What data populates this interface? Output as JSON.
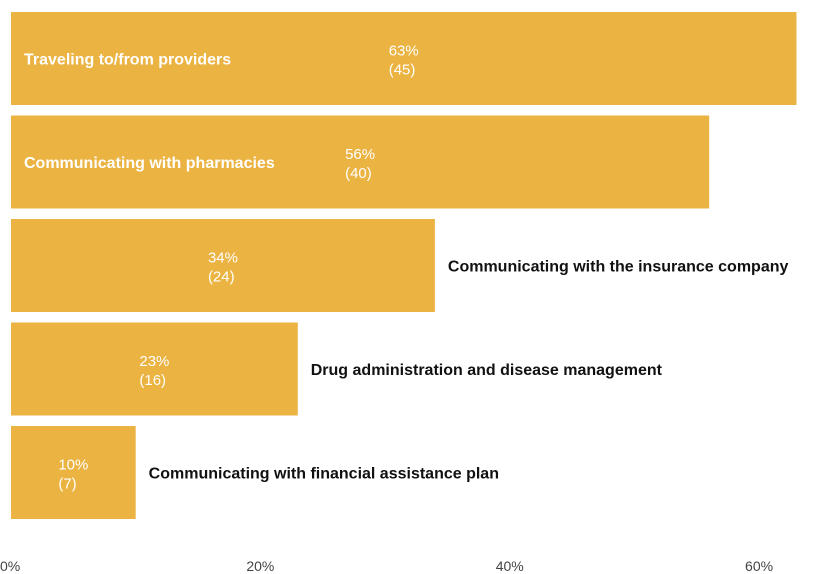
{
  "chart_data": {
    "type": "bar",
    "orientation": "horizontal",
    "title": "",
    "xlabel": "",
    "ylabel": "",
    "xlim": [
      0,
      62
    ],
    "grid": false,
    "bar_color": "#ebb341",
    "categories": [
      "Traveling to/from providers",
      "Communicating with pharmacies",
      "Communicating with the insurance company",
      "Drug administration and disease management",
      "Communicating with financial assistance plan"
    ],
    "values": [
      63,
      56,
      34,
      23,
      10
    ],
    "counts": [
      45,
      40,
      24,
      16,
      7
    ],
    "value_labels": [
      {
        "percent": "63%",
        "count": "(45)"
      },
      {
        "percent": "56%",
        "count": "(40)"
      },
      {
        "percent": "34%",
        "count": "(24)"
      },
      {
        "percent": "23%",
        "count": "(16)"
      },
      {
        "percent": "10%",
        "count": "(7)"
      }
    ],
    "x_ticks": [
      {
        "value": 0,
        "label": "0%"
      },
      {
        "value": 20,
        "label": "20%"
      },
      {
        "value": 40,
        "label": "40%"
      },
      {
        "value": 60,
        "label": "60%"
      }
    ]
  }
}
